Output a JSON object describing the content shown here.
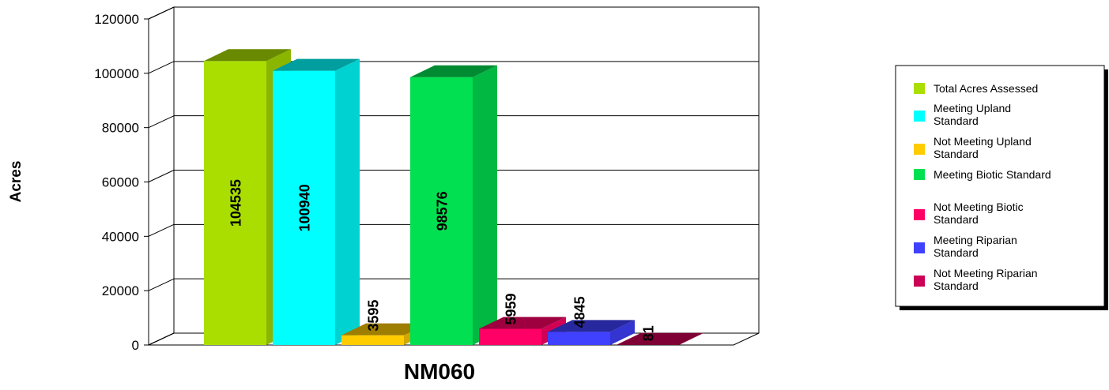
{
  "chart_data": {
    "type": "bar",
    "style": "3d",
    "categories": [
      "NM060"
    ],
    "xlabel": "NM060",
    "ylabel": "Acres",
    "ylim": [
      0,
      120000
    ],
    "yticks": [
      0,
      20000,
      40000,
      60000,
      80000,
      100000,
      120000
    ],
    "grid": true,
    "legend_position": "right",
    "series": [
      {
        "name": "Total Acres Assessed",
        "values": [
          104535
        ],
        "color": "#aade00"
      },
      {
        "name": "Meeting Upland Standard",
        "values": [
          100940
        ],
        "color": "#00ffff"
      },
      {
        "name": "Not Meeting Upland Standard",
        "values": [
          3595
        ],
        "color": "#ffcc00"
      },
      {
        "name": "Meeting Biotic Standard",
        "values": [
          98576
        ],
        "color": "#00e050"
      },
      {
        "name": "Not Meeting Biotic Standard",
        "values": [
          5959
        ],
        "color": "#ff0066"
      },
      {
        "name": "Meeting Riparian Standard",
        "values": [
          4845
        ],
        "color": "#4040ff"
      },
      {
        "name": "Not Meeting Riparian Standard",
        "values": [
          81
        ],
        "color": "#cc0055"
      }
    ]
  }
}
